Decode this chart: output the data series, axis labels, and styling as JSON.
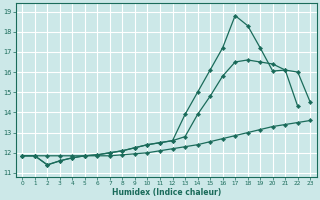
{
  "xlabel": "Humidex (Indice chaleur)",
  "bg_color": "#cce8e8",
  "grid_color": "#ffffff",
  "line_color": "#1a6b5a",
  "xlim": [
    -0.5,
    23.5
  ],
  "ylim": [
    10.8,
    19.4
  ],
  "xticks": [
    0,
    1,
    2,
    3,
    4,
    5,
    6,
    7,
    8,
    9,
    10,
    11,
    12,
    13,
    14,
    15,
    16,
    17,
    18,
    19,
    20,
    21,
    22,
    23
  ],
  "yticks": [
    11,
    12,
    13,
    14,
    15,
    16,
    17,
    18,
    19
  ],
  "line1_x": [
    0,
    1,
    2,
    3,
    4,
    5,
    6,
    7,
    8,
    9,
    10,
    11,
    12,
    13,
    14,
    15,
    16,
    17,
    18,
    19,
    20,
    21,
    22,
    23
  ],
  "line1_y": [
    11.85,
    11.85,
    11.85,
    11.85,
    11.85,
    11.85,
    11.85,
    11.85,
    11.9,
    11.95,
    12.0,
    12.1,
    12.2,
    12.3,
    12.4,
    12.55,
    12.7,
    12.85,
    13.0,
    13.15,
    13.3,
    13.4,
    13.5,
    13.6
  ],
  "line2_x": [
    0,
    1,
    2,
    3,
    4,
    5,
    6,
    7,
    8,
    9,
    10,
    11,
    12,
    13,
    14,
    15,
    16,
    17,
    18,
    19,
    20,
    21,
    22,
    23
  ],
  "line2_y": [
    11.85,
    11.85,
    11.4,
    11.6,
    11.75,
    11.85,
    11.9,
    12.0,
    12.1,
    12.25,
    12.4,
    12.5,
    12.6,
    12.8,
    13.9,
    14.8,
    15.8,
    16.5,
    16.6,
    16.5,
    16.4,
    16.1,
    16.0,
    14.5
  ],
  "line3_x": [
    0,
    1,
    2,
    3,
    4,
    5,
    6,
    7,
    8,
    9,
    10,
    11,
    12,
    13,
    14,
    15,
    16,
    17,
    18,
    19,
    20,
    21,
    22
  ],
  "line3_y": [
    11.85,
    11.85,
    11.4,
    11.6,
    11.75,
    11.85,
    11.9,
    12.0,
    12.1,
    12.25,
    12.4,
    12.5,
    12.6,
    13.9,
    15.0,
    16.1,
    17.2,
    18.8,
    18.3,
    17.2,
    16.05,
    16.1,
    14.3
  ]
}
